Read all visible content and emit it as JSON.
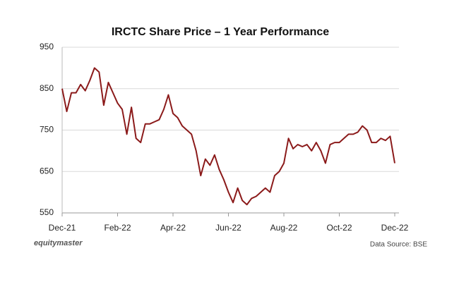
{
  "chart_data": {
    "type": "line",
    "title": "IRCTC Share Price – 1 Year Performance",
    "brand": "equitymaster",
    "source": "Data Source: BSE",
    "categories": [
      "Dec-21",
      null,
      null,
      null,
      null,
      null,
      null,
      null,
      null,
      null,
      null,
      null,
      "Feb-22",
      null,
      null,
      null,
      null,
      null,
      null,
      null,
      null,
      null,
      null,
      null,
      "Apr-22",
      null,
      null,
      null,
      null,
      null,
      null,
      null,
      null,
      null,
      null,
      null,
      "Jun-22",
      null,
      null,
      null,
      null,
      null,
      null,
      null,
      null,
      null,
      null,
      null,
      "Aug-22",
      null,
      null,
      null,
      null,
      null,
      null,
      null,
      null,
      null,
      null,
      null,
      "Oct-22",
      null,
      null,
      null,
      null,
      null,
      null,
      null,
      null,
      null,
      null,
      null,
      "Dec-22"
    ],
    "series": [
      {
        "name": "IRCTC",
        "color": "#8b1a1a",
        "values": [
          850,
          795,
          840,
          840,
          860,
          845,
          870,
          900,
          890,
          810,
          865,
          840,
          815,
          800,
          740,
          805,
          730,
          720,
          765,
          765,
          770,
          775,
          800,
          835,
          790,
          780,
          760,
          750,
          740,
          700,
          640,
          680,
          665,
          690,
          655,
          630,
          600,
          575,
          610,
          580,
          570,
          585,
          590,
          600,
          610,
          600,
          640,
          650,
          670,
          730,
          705,
          715,
          710,
          715,
          700,
          720,
          700,
          670,
          715,
          720,
          720,
          730,
          740,
          740,
          745,
          760,
          750,
          720,
          720,
          730,
          725,
          735,
          670
        ]
      }
    ],
    "ylim": [
      550,
      950
    ],
    "yticks": [
      550,
      650,
      750,
      850,
      950
    ],
    "grid": true
  }
}
